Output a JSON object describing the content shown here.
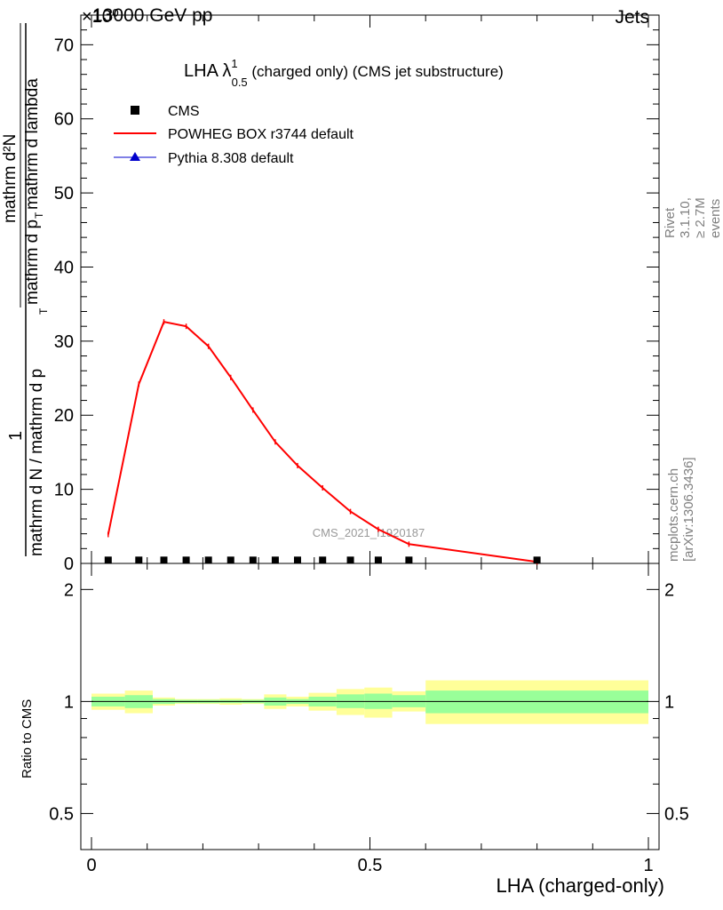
{
  "header": {
    "left_label": "13000 GeV pp",
    "multiplier_label": "×10⁰",
    "right_label": "Jets"
  },
  "side_labels": {
    "rivet": "Rivet 3.1.10, ≥ 2.7M events",
    "mcplots": "mcplots.cern.ch [arXiv:1306.3436]"
  },
  "watermark": "CMS_2021_I1920187",
  "chart_data": {
    "type": "line",
    "title": "LHA λ¹₀.₅ (charged only) (CMS jet substructure)",
    "title_main": "LHA λ",
    "title_sup": "1",
    "title_sub": "0.5",
    "title_tail": " (charged only) (CMS jet substructure)",
    "ylabel_numerator": "1",
    "ylabel_denominator": "mathrm d N / mathrm d p",
    "ylabel_denom_sub": "T",
    "ylabel_second_num": "mathrm d²N",
    "ylabel_second_den": "mathrm d p",
    "ylabel_second_sub": "T",
    "ylabel_second_tail": " mathrm d lambda",
    "xlabel": "LHA (charged-only)",
    "ratio_ylabel": "Ratio to CMS",
    "xlim": [
      0,
      1
    ],
    "ylim": [
      0,
      74
    ],
    "ratio_ylim": [
      0.4,
      2.35
    ],
    "x_ticks": [
      0,
      0.5,
      1
    ],
    "x_tick_labels": [
      "0",
      "0.5",
      "1"
    ],
    "y_ticks": [
      0,
      10,
      20,
      30,
      40,
      50,
      60,
      70
    ],
    "y_tick_labels": [
      "0",
      "10",
      "20",
      "30",
      "40",
      "50",
      "60",
      "70"
    ],
    "ratio_ticks": [
      0.5,
      1,
      2
    ],
    "ratio_tick_labels": [
      "0.5",
      "1",
      "2"
    ],
    "legend": [
      {
        "name": "CMS",
        "color": "#000000",
        "marker": "square"
      },
      {
        "name": "POWHEG BOX r3744 default",
        "color": "#ff0000",
        "marker": "line"
      },
      {
        "name": "Pythia 8.308 default",
        "color": "#0000cc",
        "marker": "triangle"
      }
    ],
    "legend_placement": "top-left",
    "bin_edges": [
      0,
      0.06,
      0.11,
      0.15,
      0.19,
      0.23,
      0.27,
      0.31,
      0.35,
      0.39,
      0.44,
      0.49,
      0.54,
      0.6,
      1.0
    ],
    "series": [
      {
        "name": "CMS",
        "x": [
          0.03,
          0.085,
          0.13,
          0.17,
          0.21,
          0.25,
          0.29,
          0.33,
          0.37,
          0.415,
          0.465,
          0.515,
          0.57,
          0.8
        ],
        "y": [
          0.2,
          0.2,
          0.2,
          0.2,
          0.2,
          0.2,
          0.2,
          0.2,
          0.2,
          0.2,
          0.2,
          0.2,
          0.2,
          0.2
        ]
      },
      {
        "name": "POWHEG BOX r3744 default",
        "x": [
          0.03,
          0.085,
          0.13,
          0.17,
          0.21,
          0.25,
          0.29,
          0.33,
          0.37,
          0.415,
          0.465,
          0.515,
          0.57,
          0.8
        ],
        "y": [
          3.9,
          24.2,
          32.6,
          32.0,
          29.3,
          25.1,
          20.7,
          16.4,
          13.2,
          10.2,
          7.0,
          4.6,
          2.6,
          0.2
        ]
      },
      {
        "name": "Pythia 8.308 default",
        "x": [],
        "y": []
      }
    ],
    "ratio_bands": [
      {
        "x0": 0.0,
        "x1": 0.06,
        "inner": [
          0.97,
          1.03
        ],
        "outer": [
          0.95,
          1.05
        ]
      },
      {
        "x0": 0.06,
        "x1": 0.11,
        "inner": [
          0.96,
          1.04
        ],
        "outer": [
          0.93,
          1.07
        ]
      },
      {
        "x0": 0.11,
        "x1": 0.15,
        "inner": [
          0.985,
          1.015
        ],
        "outer": [
          0.975,
          1.025
        ]
      },
      {
        "x0": 0.15,
        "x1": 0.19,
        "inner": [
          0.99,
          1.01
        ],
        "outer": [
          0.985,
          1.015
        ]
      },
      {
        "x0": 0.19,
        "x1": 0.23,
        "inner": [
          0.99,
          1.01
        ],
        "outer": [
          0.985,
          1.015
        ]
      },
      {
        "x0": 0.23,
        "x1": 0.27,
        "inner": [
          0.99,
          1.01
        ],
        "outer": [
          0.98,
          1.02
        ]
      },
      {
        "x0": 0.27,
        "x1": 0.31,
        "inner": [
          0.99,
          1.01
        ],
        "outer": [
          0.985,
          1.015
        ]
      },
      {
        "x0": 0.31,
        "x1": 0.35,
        "inner": [
          0.975,
          1.025
        ],
        "outer": [
          0.955,
          1.045
        ]
      },
      {
        "x0": 0.35,
        "x1": 0.39,
        "inner": [
          0.985,
          1.015
        ],
        "outer": [
          0.97,
          1.03
        ]
      },
      {
        "x0": 0.39,
        "x1": 0.44,
        "inner": [
          0.97,
          1.03
        ],
        "outer": [
          0.945,
          1.055
        ]
      },
      {
        "x0": 0.44,
        "x1": 0.49,
        "inner": [
          0.96,
          1.045
        ],
        "outer": [
          0.92,
          1.08
        ]
      },
      {
        "x0": 0.49,
        "x1": 0.54,
        "inner": [
          0.955,
          1.05
        ],
        "outer": [
          0.905,
          1.09
        ]
      },
      {
        "x0": 0.54,
        "x1": 0.6,
        "inner": [
          0.965,
          1.04
        ],
        "outer": [
          0.94,
          1.065
        ]
      },
      {
        "x0": 0.6,
        "x1": 1.0,
        "inner": [
          0.93,
          1.07
        ],
        "outer": [
          0.87,
          1.14
        ]
      }
    ],
    "colors": {
      "inner_band": "#99ff99",
      "outer_band": "#ffff99",
      "mc": "#ff0000",
      "data": "#000000",
      "pythia": "#0000cc"
    },
    "grid": false
  }
}
